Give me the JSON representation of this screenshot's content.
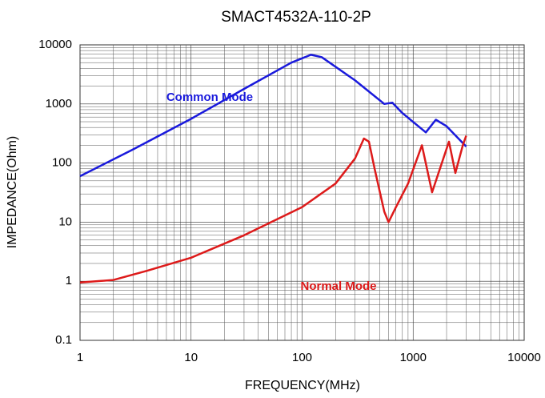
{
  "chart_data": {
    "type": "line",
    "title": "SMACT4532A-110-2P",
    "xlabel": "FREQUENCY(MHz)",
    "ylabel": "IMPEDANCE(Ohm)",
    "xscale": "log",
    "yscale": "log",
    "xlim": [
      1,
      10000
    ],
    "ylim": [
      0.1,
      10000
    ],
    "xticks": [
      1,
      10,
      100,
      1000,
      10000
    ],
    "yticks": [
      0.1,
      1,
      10,
      100,
      1000,
      10000
    ],
    "grid": true,
    "series": [
      {
        "name": "Common Mode",
        "color": "#1a1adc",
        "x": [
          1,
          3,
          10,
          30,
          80,
          120,
          150,
          300,
          550,
          650,
          800,
          1300,
          1600,
          2000,
          3000
        ],
        "values": [
          60,
          170,
          560,
          1800,
          5000,
          6800,
          6200,
          2500,
          1000,
          1050,
          700,
          330,
          540,
          420,
          190
        ]
      },
      {
        "name": "Normal Mode",
        "color": "#dd1a1a",
        "x": [
          1,
          2,
          4,
          10,
          30,
          100,
          200,
          300,
          360,
          400,
          450,
          550,
          600,
          700,
          900,
          1200,
          1480,
          2100,
          2400,
          2800,
          3000
        ],
        "values": [
          0.95,
          1.05,
          1.5,
          2.5,
          6,
          18,
          45,
          120,
          260,
          230,
          80,
          15,
          10,
          18,
          45,
          200,
          32,
          230,
          68,
          200,
          290
        ]
      }
    ]
  }
}
